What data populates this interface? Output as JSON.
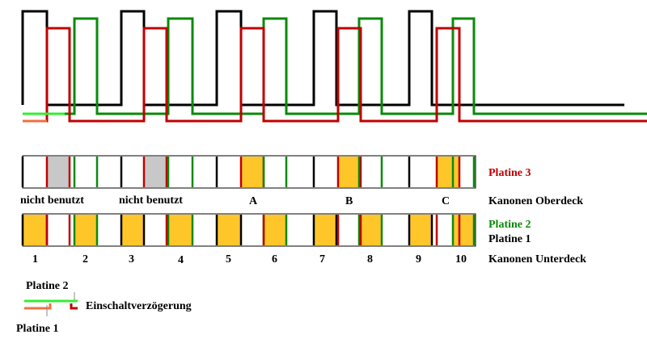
{
  "colors": {
    "platine1": "#000000",
    "platine2": "#0a8a0a",
    "platine3": "#c00000",
    "platine2_light": "#33ee33",
    "platine1_light": "#f07040",
    "active_fill": "#ffc62a",
    "unused_fill": "#c8c8c8",
    "legend_platine2": "#0a8a0a",
    "legend_platine3": "#c00000",
    "legend_platine1": "#000000"
  },
  "labels": {
    "platine3": "Platine 3",
    "platine2": "Platine 2",
    "platine1": "Platine 1",
    "kanonen_oberdeck": "Kanonen Oberdeck",
    "kanonen_unterdeck": "Kanonen Unterdeck"
  },
  "oberdeck": {
    "labels": [
      "nicht benutzt",
      "nicht benutzt",
      "A",
      "B",
      "C"
    ],
    "slot_states": [
      "unused",
      "unused",
      "active",
      "active",
      "active"
    ]
  },
  "unterdeck": {
    "labels": [
      "1",
      "2",
      "3",
      "4",
      "5",
      "6",
      "7",
      "8",
      "9",
      "10"
    ]
  },
  "legend": {
    "platine2": "Platine 2",
    "platine1": "Platine 1",
    "delay": "Einschaltverzögerung"
  }
}
